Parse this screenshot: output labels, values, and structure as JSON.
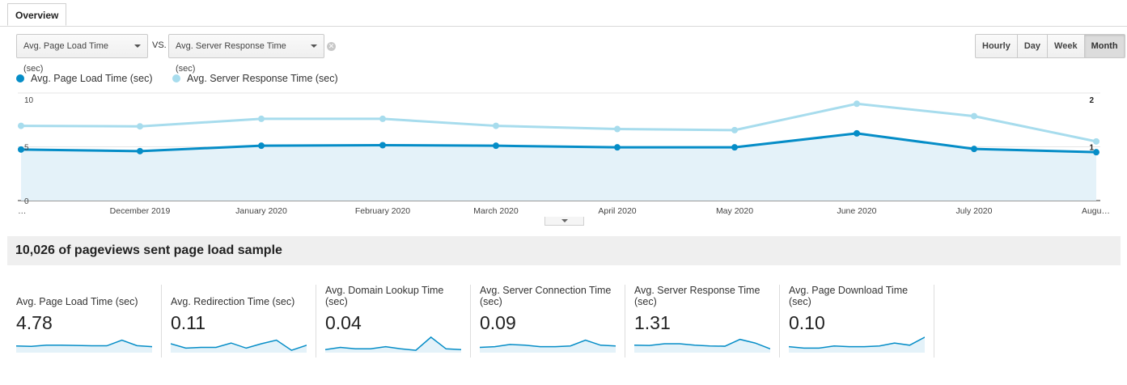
{
  "tabs": [
    {
      "label": "Overview"
    }
  ],
  "metric_selector": {
    "primary": "Avg. Page Load Time (sec)",
    "vs_label": "VS.",
    "secondary": "Avg. Server Response Time (sec)"
  },
  "period_buttons": [
    {
      "label": "Hourly",
      "active": false
    },
    {
      "label": "Day",
      "active": false
    },
    {
      "label": "Week",
      "active": false
    },
    {
      "label": "Month",
      "active": true
    }
  ],
  "legend": {
    "primary": {
      "label": "Avg. Page Load Time (sec)",
      "color": "#058dc7"
    },
    "secondary": {
      "label": "Avg. Server Response Time (sec)",
      "color": "#a7dced"
    }
  },
  "chart_data": {
    "type": "line",
    "categories": [
      "…",
      "December 2019",
      "January 2020",
      "February 2020",
      "March 2020",
      "April 2020",
      "May 2020",
      "June 2020",
      "July 2020",
      "Augu…"
    ],
    "series": [
      {
        "name": "Avg. Page Load Time (sec)",
        "axis": "left",
        "color": "#058dc7",
        "area": true,
        "values": [
          4.75,
          4.6,
          5.1,
          5.15,
          5.1,
          4.95,
          4.95,
          6.25,
          4.8,
          4.5
        ]
      },
      {
        "name": "Avg. Server Response Time (sec)",
        "axis": "right",
        "color": "#a7dced",
        "area": false,
        "values": [
          1.39,
          1.38,
          1.52,
          1.52,
          1.39,
          1.33,
          1.31,
          1.8,
          1.57,
          1.1
        ]
      }
    ],
    "y_left": {
      "min": 0,
      "max": 10,
      "ticks": [
        "10",
        "5",
        "0"
      ]
    },
    "y_right": {
      "min": 0,
      "max": 2,
      "ticks": [
        "2",
        "1"
      ]
    },
    "grid": true
  },
  "summary": {
    "text": "10,026 of pageviews sent page load sample"
  },
  "scorecards": [
    {
      "label": "Avg. Page Load Time (sec)",
      "value": "4.78",
      "spark": [
        0.35,
        0.32,
        0.4,
        0.4,
        0.38,
        0.36,
        0.36,
        0.75,
        0.37,
        0.3
      ]
    },
    {
      "label": "Avg. Redirection Time (sec)",
      "value": "0.11",
      "spark": [
        0.5,
        0.2,
        0.25,
        0.25,
        0.55,
        0.2,
        0.5,
        0.75,
        0.05,
        0.4
      ]
    },
    {
      "label": "Avg. Domain Lookup Time (sec)",
      "value": "0.04",
      "spark": [
        0.1,
        0.25,
        0.15,
        0.15,
        0.3,
        0.15,
        0.05,
        0.95,
        0.15,
        0.1
      ]
    },
    {
      "label": "Avg. Server Connection Time (sec)",
      "value": "0.09",
      "spark": [
        0.25,
        0.3,
        0.45,
        0.4,
        0.3,
        0.3,
        0.35,
        0.75,
        0.4,
        0.35
      ]
    },
    {
      "label": "Avg. Server Response Time (sec)",
      "value": "1.31",
      "spark": [
        0.4,
        0.38,
        0.5,
        0.5,
        0.4,
        0.35,
        0.33,
        0.8,
        0.55,
        0.15
      ]
    },
    {
      "label": "Avg. Page Download Time (sec)",
      "value": "0.10",
      "spark": [
        0.3,
        0.2,
        0.2,
        0.35,
        0.3,
        0.3,
        0.35,
        0.55,
        0.4,
        0.95
      ]
    }
  ]
}
